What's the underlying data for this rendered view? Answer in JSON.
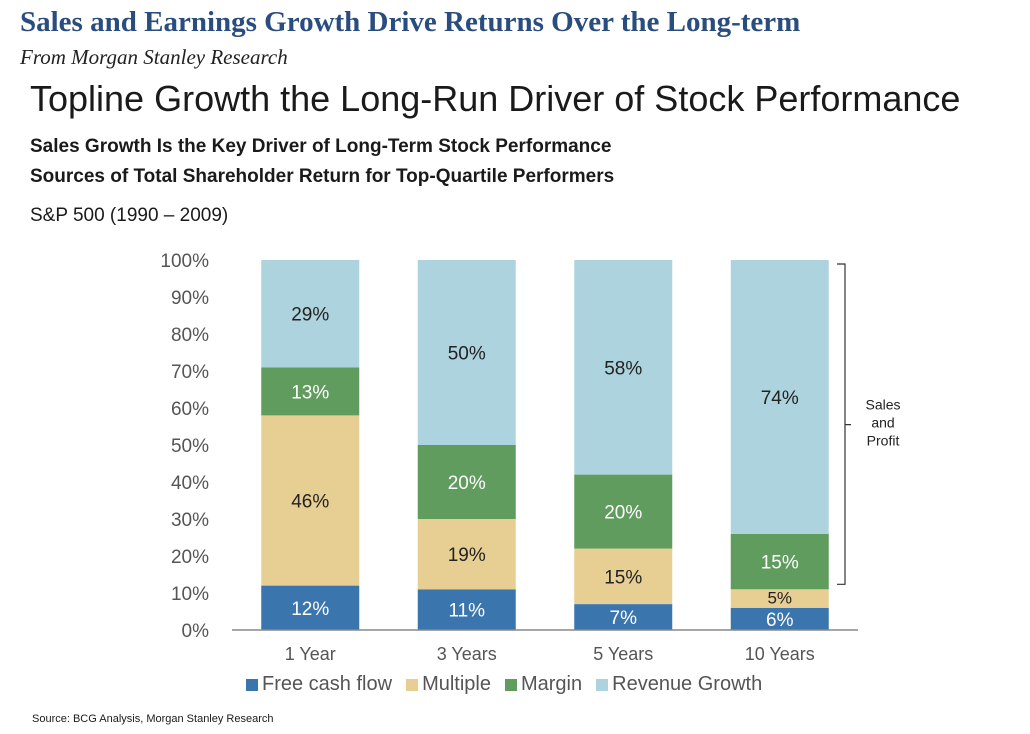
{
  "header": {
    "title": "Sales and Earnings Growth Drive Returns Over the Long-term",
    "subtitle": "From Morgan Stanley Research"
  },
  "chart_data": {
    "type": "bar",
    "stacked": true,
    "title": "Topline Growth the Long-Run Driver of Stock Performance",
    "subtitle_1": "Sales Growth Is the Key Driver of Long-Term Stock Performance",
    "subtitle_2": "Sources of Total Shareholder Return for Top-Quartile Performers",
    "index_label": "S&P 500 (1990 – 2009)",
    "categories": [
      "1 Year",
      "3 Years",
      "5 Years",
      "10 Years"
    ],
    "series": [
      {
        "name": "Free cash flow",
        "color": "#3a75ae",
        "values": [
          12,
          11,
          7,
          6
        ],
        "labels": [
          "12%",
          "11%",
          "7%",
          "6%"
        ]
      },
      {
        "name": "Multiple",
        "color": "#e7cf94",
        "values": [
          46,
          19,
          15,
          5
        ],
        "labels": [
          "46%",
          "19%",
          "15%",
          "5%"
        ]
      },
      {
        "name": "Margin",
        "color": "#5f9c5d",
        "values": [
          13,
          20,
          20,
          15
        ],
        "labels": [
          "13%",
          "20%",
          "20%",
          "15%"
        ]
      },
      {
        "name": "Revenue Growth",
        "color": "#add3de",
        "values": [
          29,
          50,
          58,
          74
        ],
        "labels": [
          "29%",
          "50%",
          "58%",
          "74%"
        ]
      }
    ],
    "y_ticks": [
      "0%",
      "10%",
      "20%",
      "30%",
      "40%",
      "50%",
      "60%",
      "70%",
      "80%",
      "90%",
      "100%"
    ],
    "ylim": [
      0,
      100
    ],
    "grid": false,
    "legend_position": "bottom",
    "bracket_annotation": [
      "Sales",
      "and",
      "Profit"
    ]
  },
  "source": "Source: BCG Analysis, Morgan Stanley Research"
}
